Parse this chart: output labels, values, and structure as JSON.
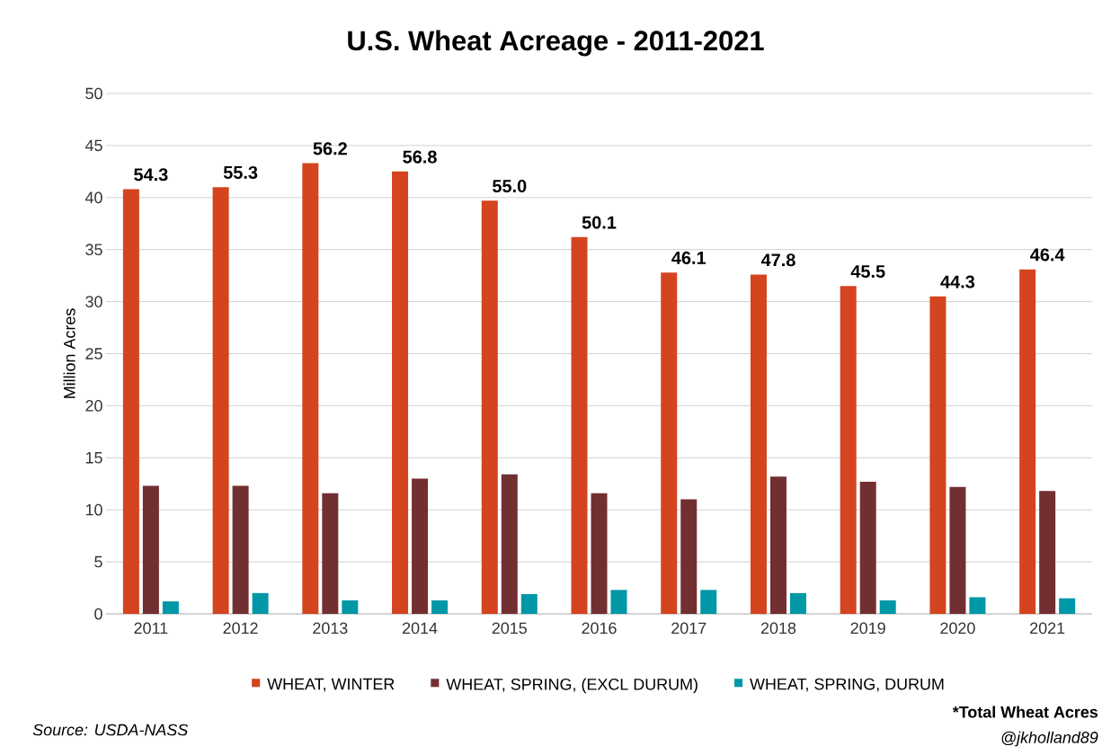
{
  "chart_data": {
    "type": "bar",
    "title": "U.S. Wheat Acreage - 2011-2021",
    "ylabel": "Million Acres",
    "categories": [
      "2011",
      "2012",
      "2013",
      "2014",
      "2015",
      "2016",
      "2017",
      "2018",
      "2019",
      "2020",
      "2021"
    ],
    "series": [
      {
        "name": "WHEAT, WINTER",
        "color": "#d4441e",
        "values": [
          40.8,
          41.0,
          43.3,
          42.5,
          39.7,
          36.2,
          32.8,
          32.6,
          31.5,
          30.5,
          33.1
        ]
      },
      {
        "name": "WHEAT, SPRING, (EXCL DURUM)",
        "color": "#722f32",
        "values": [
          12.3,
          12.3,
          11.6,
          13.0,
          13.4,
          11.6,
          11.0,
          13.2,
          12.7,
          12.2,
          11.8
        ]
      },
      {
        "name": "WHEAT, SPRING, DURUM",
        "color": "#0097a7",
        "values": [
          1.2,
          2.0,
          1.3,
          1.3,
          1.9,
          2.3,
          2.3,
          2.0,
          1.3,
          1.6,
          1.5
        ]
      }
    ],
    "ylim": [
      0,
      50
    ],
    "yticks": [
      0,
      5,
      10,
      15,
      20,
      25,
      30,
      35,
      40,
      45,
      50
    ],
    "grid": "y",
    "legend": "bottom",
    "totals": [
      "54.3",
      "55.3",
      "56.2",
      "56.8",
      "55.0",
      "50.1",
      "46.1",
      "47.8",
      "45.5",
      "44.3",
      "46.4"
    ],
    "annotations": [
      "Source: USDA-NASS",
      "*Total Wheat Acres",
      "@jkholland89"
    ]
  }
}
